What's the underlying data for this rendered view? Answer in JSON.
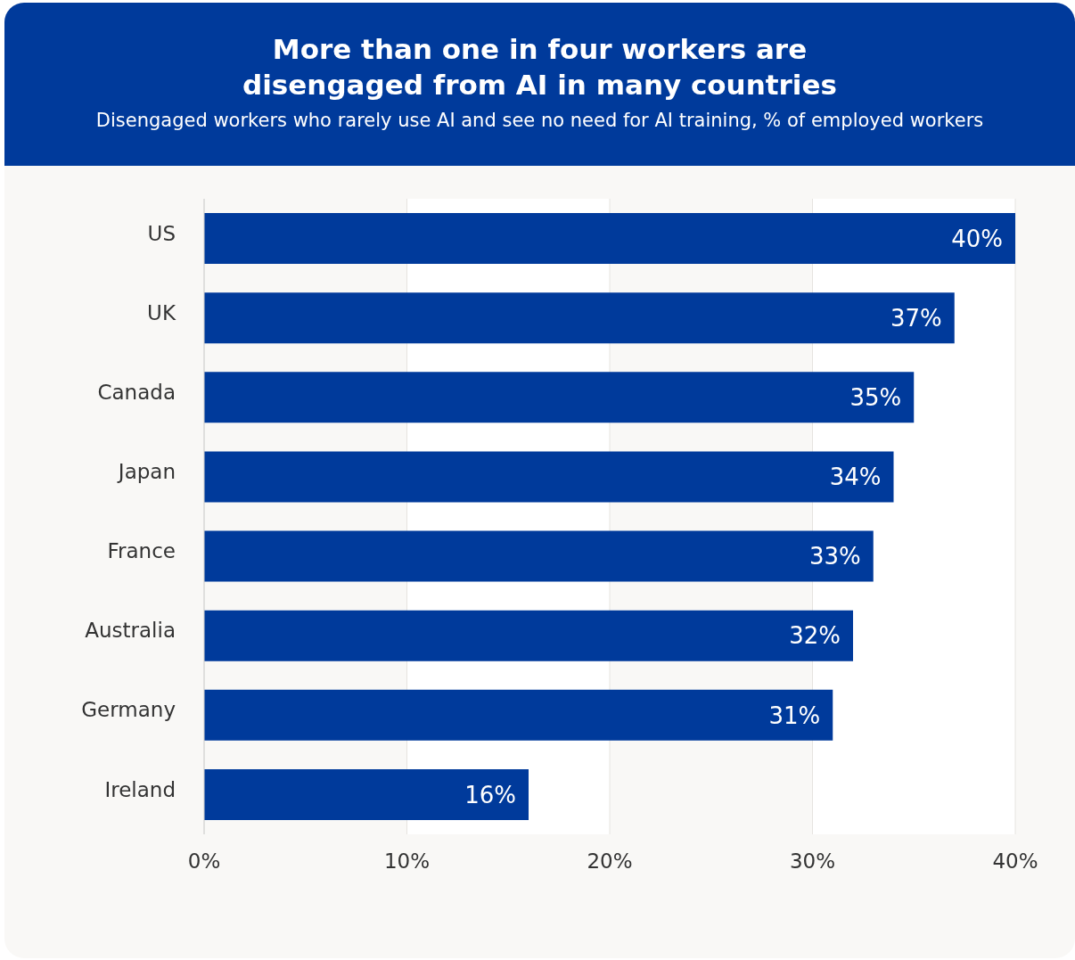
{
  "chart_data": {
    "type": "bar",
    "orientation": "horizontal",
    "title": "More than one in four workers are\ndisengaged from AI in many countries",
    "subtitle": "Disengaged workers who rarely use AI and see no need for AI training, % of employed workers",
    "categories": [
      "US",
      "UK",
      "Canada",
      "Japan",
      "France",
      "Australia",
      "Germany",
      "Ireland"
    ],
    "values": [
      40,
      37,
      35,
      34,
      33,
      32,
      31,
      16
    ],
    "value_labels": [
      "40%",
      "37%",
      "35%",
      "34%",
      "33%",
      "32%",
      "31%",
      "16%"
    ],
    "color": "#003a9b",
    "xlim": [
      0,
      40
    ],
    "xticks": [
      {
        "value": 0,
        "label": "0%"
      },
      {
        "value": 10,
        "label": "10%"
      },
      {
        "value": 20,
        "label": "20%"
      },
      {
        "value": 30,
        "label": "30%"
      },
      {
        "value": 40,
        "label": "40%"
      }
    ],
    "grid": "x"
  }
}
